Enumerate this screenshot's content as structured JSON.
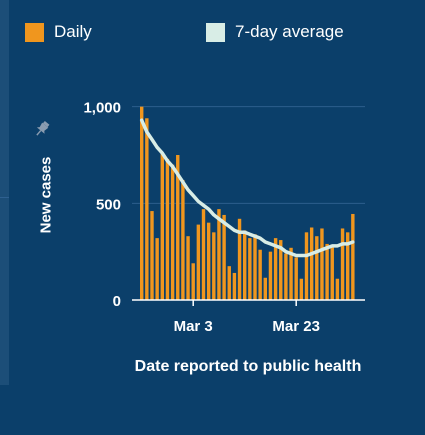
{
  "legend": {
    "daily_label": "Daily",
    "average_label": "7-day average",
    "daily_color": "#f0961e",
    "average_color": "#d8ede6"
  },
  "pin_icon": "pin-icon",
  "chart_data": {
    "type": "bar",
    "ylabel": "New cases",
    "xlabel": "Date reported to public health",
    "ylim": [
      0,
      1050
    ],
    "yticks": [
      0,
      500,
      1000
    ],
    "ytick_labels": [
      "0",
      "500",
      "1,000"
    ],
    "xtick_labels": [
      "Mar 3",
      "Mar 23"
    ],
    "xtick_indices": [
      10,
      30
    ],
    "grid": true,
    "series": [
      {
        "name": "Daily",
        "kind": "bar",
        "values": [
          1000,
          940,
          460,
          320,
          760,
          730,
          700,
          750,
          620,
          330,
          190,
          390,
          470,
          400,
          350,
          470,
          440,
          175,
          140,
          420,
          360,
          320,
          340,
          260,
          115,
          250,
          320,
          310,
          240,
          270,
          220,
          110,
          350,
          375,
          330,
          370,
          290,
          280,
          110,
          370,
          350,
          445
        ]
      },
      {
        "name": "7-day average",
        "kind": "line",
        "values": [
          930,
          870,
          830,
          790,
          760,
          720,
          690,
          650,
          610,
          570,
          540,
          510,
          490,
          470,
          440,
          420,
          400,
          380,
          360,
          350,
          350,
          340,
          330,
          320,
          300,
          290,
          280,
          270,
          250,
          240,
          230,
          230,
          230,
          240,
          250,
          260,
          270,
          280,
          280,
          290,
          290,
          300
        ]
      }
    ]
  }
}
